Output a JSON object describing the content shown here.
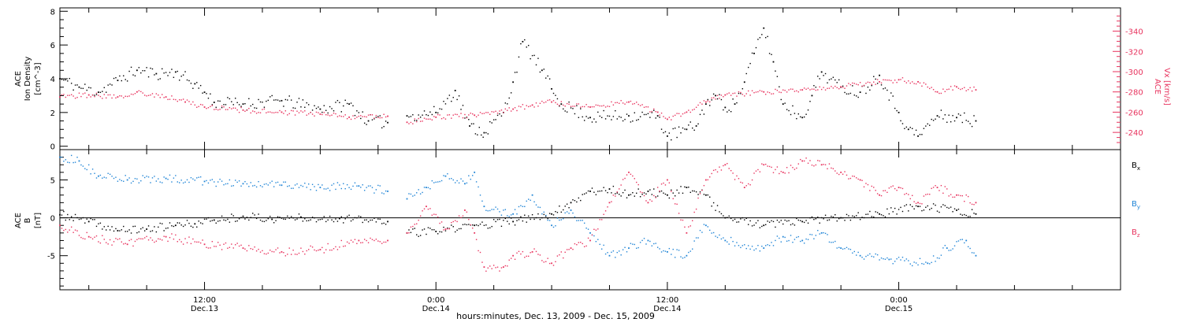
{
  "colors": {
    "black": "#000000",
    "red": "#e8335e",
    "blue": "#1f84d6"
  },
  "xlabel": "hours:minutes, Dec. 13, 2009 - Dec. 15, 2009",
  "chart_data": [
    {
      "type": "scatter",
      "panel": "top",
      "ylabel_lines": [
        "ACE",
        "Ion Density",
        "[cm^-3]"
      ],
      "y2label_lines": [
        "ACE",
        "Vx [km/s]"
      ],
      "x": {
        "start": "2009-12-13 04:30",
        "end": "2009-12-15 11:30",
        "gaps": [
          [
            "2009-12-13 21:30",
            "2009-12-13 22:30"
          ]
        ],
        "tick_labels": [
          {
            "time": "2009-12-13 12:00",
            "lines": [
              "12:00",
              "Dec.13"
            ]
          },
          {
            "time": "2009-12-14 00:00",
            "lines": [
              "0:00",
              "Dec.14"
            ]
          },
          {
            "time": "2009-12-14 12:00",
            "lines": [
              "12:00",
              "Dec.14"
            ]
          },
          {
            "time": "2009-12-15 00:00",
            "lines": [
              "0:00",
              "Dec.15"
            ]
          }
        ]
      },
      "y_left": {
        "range": [
          -0.2,
          8.2
        ],
        "ticks": [
          "0",
          "2",
          "4",
          "6",
          "8"
        ],
        "tick_values": [
          0,
          2,
          4,
          6,
          8
        ]
      },
      "y_right": {
        "range": [
          -223,
          -363
        ],
        "ticks": [
          "-240",
          "-260",
          "-280",
          "-300",
          "-320",
          "-340"
        ],
        "tick_values": [
          -240,
          -260,
          -280,
          -300,
          -320,
          -340
        ]
      },
      "series": [
        {
          "color": "#000000",
          "axis": "left",
          "points": [
            [
              "2009-12-13 04:30",
              4.0
            ],
            [
              "2009-12-13 05:30",
              3.5
            ],
            [
              "2009-12-13 06:30",
              3.2
            ],
            [
              "2009-12-13 07:30",
              3.9
            ],
            [
              "2009-12-13 08:30",
              4.5
            ],
            [
              "2009-12-13 09:30",
              4.3
            ],
            [
              "2009-12-13 10:30",
              4.4
            ],
            [
              "2009-12-13 11:30",
              3.7
            ],
            [
              "2009-12-13 12:00",
              3.2
            ],
            [
              "2009-12-13 12:30",
              2.6
            ],
            [
              "2009-12-13 14:00",
              2.5
            ],
            [
              "2009-12-13 16:00",
              2.7
            ],
            [
              "2009-12-13 18:00",
              2.2
            ],
            [
              "2009-12-13 19:30",
              2.5
            ],
            [
              "2009-12-13 20:30",
              1.5
            ],
            [
              "2009-12-13 21:30",
              1.4
            ],
            [
              "2009-12-13 22:30",
              1.8
            ],
            [
              "2009-12-14 00:00",
              2.0
            ],
            [
              "2009-12-14 01:00",
              3.3
            ],
            [
              "2009-12-14 01:45",
              1.2
            ],
            [
              "2009-12-14 02:30",
              0.8
            ],
            [
              "2009-12-14 03:30",
              2.0
            ],
            [
              "2009-12-14 04:00",
              3.8
            ],
            [
              "2009-12-14 04:30",
              6.2
            ],
            [
              "2009-12-14 05:30",
              4.5
            ],
            [
              "2009-12-14 06:00",
              3.4
            ],
            [
              "2009-12-14 06:30",
              2.5
            ],
            [
              "2009-12-14 08:00",
              1.7
            ],
            [
              "2009-12-14 10:00",
              1.8
            ],
            [
              "2009-12-14 11:30",
              1.8
            ],
            [
              "2009-12-14 12:00",
              0.6
            ],
            [
              "2009-12-14 13:00",
              1.0
            ],
            [
              "2009-12-14 13:30",
              1.2
            ],
            [
              "2009-12-14 14:00",
              2.5
            ],
            [
              "2009-12-14 14:30",
              3.0
            ],
            [
              "2009-12-14 15:00",
              2.3
            ],
            [
              "2009-12-14 15:30",
              2.5
            ],
            [
              "2009-12-14 16:00",
              3.8
            ],
            [
              "2009-12-14 16:30",
              5.5
            ],
            [
              "2009-12-14 17:00",
              7.0
            ],
            [
              "2009-12-14 17:30",
              5.0
            ],
            [
              "2009-12-14 18:00",
              2.5
            ],
            [
              "2009-12-14 19:00",
              1.7
            ],
            [
              "2009-12-14 19:30",
              3.0
            ],
            [
              "2009-12-14 20:00",
              4.4
            ],
            [
              "2009-12-14 21:00",
              3.5
            ],
            [
              "2009-12-14 22:00",
              3.2
            ],
            [
              "2009-12-14 23:00",
              4.2
            ],
            [
              "2009-12-15 00:00",
              2.0
            ],
            [
              "2009-12-15 00:30",
              1.0
            ],
            [
              "2009-12-15 01:00",
              0.6
            ],
            [
              "2009-12-15 02:00",
              1.8
            ],
            [
              "2009-12-15 03:00",
              1.7
            ],
            [
              "2009-12-15 04:00",
              1.5
            ]
          ]
        },
        {
          "color": "#e8335e",
          "axis": "right",
          "points": [
            [
              "2009-12-13 04:30",
              -275
            ],
            [
              "2009-12-13 06:00",
              -277
            ],
            [
              "2009-12-13 07:30",
              -275
            ],
            [
              "2009-12-13 08:30",
              -280
            ],
            [
              "2009-12-13 10:00",
              -275
            ],
            [
              "2009-12-13 11:00",
              -270
            ],
            [
              "2009-12-13 12:00",
              -265
            ],
            [
              "2009-12-13 14:00",
              -262
            ],
            [
              "2009-12-13 16:00",
              -260
            ],
            [
              "2009-12-13 18:00",
              -258
            ],
            [
              "2009-12-13 19:30",
              -255
            ],
            [
              "2009-12-13 21:30",
              -256
            ],
            [
              "2009-12-13 22:30",
              -250
            ],
            [
              "2009-12-14 00:00",
              -255
            ],
            [
              "2009-12-14 02:00",
              -257
            ],
            [
              "2009-12-14 04:00",
              -263
            ],
            [
              "2009-12-14 05:00",
              -267
            ],
            [
              "2009-12-14 06:00",
              -270
            ],
            [
              "2009-12-14 08:00",
              -265
            ],
            [
              "2009-12-14 10:00",
              -270
            ],
            [
              "2009-12-14 11:30",
              -260
            ],
            [
              "2009-12-14 12:00",
              -253
            ],
            [
              "2009-12-14 13:00",
              -260
            ],
            [
              "2009-12-14 14:00",
              -270
            ],
            [
              "2009-12-14 15:00",
              -277
            ],
            [
              "2009-12-14 17:00",
              -280
            ],
            [
              "2009-12-14 19:00",
              -282
            ],
            [
              "2009-12-14 21:00",
              -285
            ],
            [
              "2009-12-14 23:00",
              -290
            ],
            [
              "2009-12-15 00:00",
              -292
            ],
            [
              "2009-12-15 01:00",
              -290
            ],
            [
              "2009-12-15 02:00",
              -280
            ],
            [
              "2009-12-15 03:00",
              -285
            ],
            [
              "2009-12-15 04:00",
              -282
            ]
          ]
        }
      ]
    },
    {
      "type": "scatter",
      "panel": "bottom",
      "ylabel_lines": [
        "ACE",
        "B",
        "[nT]"
      ],
      "y_left": {
        "range": [
          -9.5,
          9.0
        ],
        "ticks": [
          "-5",
          "0",
          "5"
        ],
        "tick_values": [
          -5,
          0,
          5
        ],
        "zero_line": true
      },
      "legend_position": "right",
      "series": [
        {
          "name": "Bx",
          "color": "#000000",
          "points": [
            [
              "2009-12-13 04:30",
              0.4
            ],
            [
              "2009-12-13 06:00",
              -0.5
            ],
            [
              "2009-12-13 07:30",
              -1.7
            ],
            [
              "2009-12-13 09:00",
              -1.5
            ],
            [
              "2009-12-13 10:30",
              -1.0
            ],
            [
              "2009-12-13 11:30",
              -0.8
            ],
            [
              "2009-12-13 12:30",
              -0.3
            ],
            [
              "2009-12-13 14:00",
              0.2
            ],
            [
              "2009-12-13 15:30",
              -0.2
            ],
            [
              "2009-12-13 17:00",
              0.1
            ],
            [
              "2009-12-13 19:00",
              -0.1
            ],
            [
              "2009-12-13 21:30",
              -0.5
            ],
            [
              "2009-12-13 22:30",
              -2.0
            ],
            [
              "2009-12-14 00:00",
              -1.8
            ],
            [
              "2009-12-14 02:00",
              -1.0
            ],
            [
              "2009-12-14 04:00",
              -0.5
            ],
            [
              "2009-12-14 06:00",
              0.5
            ],
            [
              "2009-12-14 07:00",
              2.0
            ],
            [
              "2009-12-14 08:00",
              3.5
            ],
            [
              "2009-12-14 09:00",
              3.8
            ],
            [
              "2009-12-14 10:00",
              3.0
            ],
            [
              "2009-12-14 11:00",
              3.5
            ],
            [
              "2009-12-14 12:00",
              3.0
            ],
            [
              "2009-12-14 13:00",
              4.0
            ],
            [
              "2009-12-14 14:00",
              3.0
            ],
            [
              "2009-12-14 15:00",
              0.0
            ],
            [
              "2009-12-14 17:00",
              -1.0
            ],
            [
              "2009-12-14 19:00",
              -0.5
            ],
            [
              "2009-12-14 21:00",
              0.0
            ],
            [
              "2009-12-14 23:00",
              0.5
            ],
            [
              "2009-12-15 01:00",
              1.5
            ],
            [
              "2009-12-15 03:00",
              1.0
            ],
            [
              "2009-12-15 04:00",
              0.5
            ]
          ]
        },
        {
          "name": "By",
          "color": "#1f84d6",
          "points": [
            [
              "2009-12-13 04:30",
              8.0
            ],
            [
              "2009-12-13 05:30",
              7.5
            ],
            [
              "2009-12-13 06:30",
              5.5
            ],
            [
              "2009-12-13 08:00",
              5.0
            ],
            [
              "2009-12-13 10:00",
              5.2
            ],
            [
              "2009-12-13 12:00",
              4.8
            ],
            [
              "2009-12-13 14:00",
              4.5
            ],
            [
              "2009-12-13 16:00",
              4.3
            ],
            [
              "2009-12-13 18:00",
              4.0
            ],
            [
              "2009-12-13 20:00",
              4.2
            ],
            [
              "2009-12-13 21:30",
              3.5
            ],
            [
              "2009-12-13 22:30",
              2.5
            ],
            [
              "2009-12-13 23:30",
              4.0
            ],
            [
              "2009-12-14 00:30",
              5.5
            ],
            [
              "2009-12-14 01:30",
              4.5
            ],
            [
              "2009-12-14 02:00",
              6.0
            ],
            [
              "2009-12-14 02:30",
              1.5
            ],
            [
              "2009-12-14 04:00",
              0.5
            ],
            [
              "2009-12-14 05:00",
              3.0
            ],
            [
              "2009-12-14 06:00",
              -1.0
            ],
            [
              "2009-12-14 07:00",
              1.0
            ],
            [
              "2009-12-14 08:00",
              -2.0
            ],
            [
              "2009-12-14 09:00",
              -5.0
            ],
            [
              "2009-12-14 10:00",
              -4.0
            ],
            [
              "2009-12-14 11:00",
              -3.0
            ],
            [
              "2009-12-14 12:00",
              -4.5
            ],
            [
              "2009-12-14 13:00",
              -5.0
            ],
            [
              "2009-12-14 14:00",
              -1.0
            ],
            [
              "2009-12-14 15:00",
              -3.0
            ],
            [
              "2009-12-14 17:00",
              -4.0
            ],
            [
              "2009-12-14 18:00",
              -2.5
            ],
            [
              "2009-12-14 19:00",
              -3.0
            ],
            [
              "2009-12-14 20:00",
              -2.0
            ],
            [
              "2009-12-14 21:00",
              -4.0
            ],
            [
              "2009-12-14 22:00",
              -5.0
            ],
            [
              "2009-12-14 23:30",
              -5.5
            ],
            [
              "2009-12-15 01:30",
              -6.0
            ],
            [
              "2009-12-15 02:30",
              -4.0
            ],
            [
              "2009-12-15 03:30",
              -3.0
            ],
            [
              "2009-12-15 04:00",
              -5.0
            ]
          ]
        },
        {
          "name": "Bz",
          "color": "#e8335e",
          "points": [
            [
              "2009-12-13 04:30",
              -1.0
            ],
            [
              "2009-12-13 06:00",
              -2.5
            ],
            [
              "2009-12-13 08:00",
              -3.5
            ],
            [
              "2009-12-13 10:00",
              -2.5
            ],
            [
              "2009-12-13 12:00",
              -3.5
            ],
            [
              "2009-12-13 14:00",
              -4.0
            ],
            [
              "2009-12-13 16:00",
              -4.5
            ],
            [
              "2009-12-13 18:00",
              -4.2
            ],
            [
              "2009-12-13 20:00",
              -3.0
            ],
            [
              "2009-12-13 21:30",
              -3.0
            ],
            [
              "2009-12-13 22:30",
              -2.0
            ],
            [
              "2009-12-13 23:30",
              1.5
            ],
            [
              "2009-12-14 00:30",
              -1.5
            ],
            [
              "2009-12-14 01:30",
              1.0
            ],
            [
              "2009-12-14 02:00",
              -2.0
            ],
            [
              "2009-12-14 02:30",
              -6.5
            ],
            [
              "2009-12-14 03:30",
              -6.5
            ],
            [
              "2009-12-14 04:00",
              -5.0
            ],
            [
              "2009-12-14 05:00",
              -4.5
            ],
            [
              "2009-12-14 06:00",
              -6.0
            ],
            [
              "2009-12-14 07:00",
              -4.0
            ],
            [
              "2009-12-14 08:00",
              -3.0
            ],
            [
              "2009-12-14 09:00",
              2.0
            ],
            [
              "2009-12-14 10:00",
              6.0
            ],
            [
              "2009-12-14 11:00",
              2.0
            ],
            [
              "2009-12-14 12:00",
              5.0
            ],
            [
              "2009-12-14 13:00",
              -2.0
            ],
            [
              "2009-12-14 14:00",
              5.0
            ],
            [
              "2009-12-14 15:00",
              7.0
            ],
            [
              "2009-12-14 16:00",
              4.0
            ],
            [
              "2009-12-14 17:00",
              7.0
            ],
            [
              "2009-12-14 18:00",
              6.0
            ],
            [
              "2009-12-14 19:00",
              7.5
            ],
            [
              "2009-12-14 20:00",
              7.0
            ],
            [
              "2009-12-14 21:00",
              6.0
            ],
            [
              "2009-12-14 22:00",
              5.0
            ],
            [
              "2009-12-14 23:00",
              3.0
            ],
            [
              "2009-12-15 00:00",
              4.0
            ],
            [
              "2009-12-15 01:00",
              2.0
            ],
            [
              "2009-12-15 02:00",
              4.0
            ],
            [
              "2009-12-15 03:00",
              3.0
            ],
            [
              "2009-12-15 04:00",
              2.0
            ]
          ]
        }
      ]
    }
  ]
}
